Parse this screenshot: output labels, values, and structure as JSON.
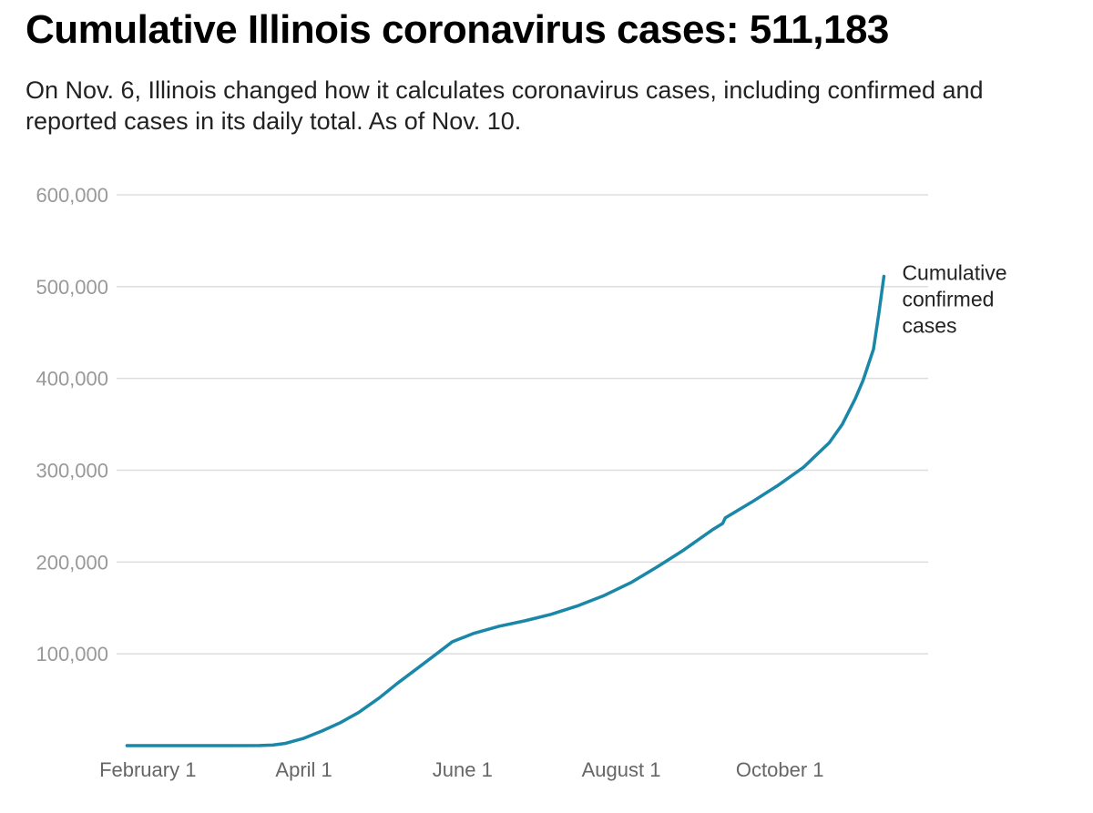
{
  "chart_data": {
    "type": "line",
    "title": "Cumulative Illinois coronavirus cases: 511,183",
    "subtitle": "On Nov. 6, Illinois changed how it calculates coronavirus cases, including confirmed and reported cases in its daily total. As of Nov. 10.",
    "xlabel": "",
    "ylabel": "",
    "ylim": [
      0,
      600000
    ],
    "xlim": [
      "2020-01-20",
      "2020-11-27"
    ],
    "grid": true,
    "x_ticks": [
      {
        "date": "2020-02-01",
        "label": "February 1"
      },
      {
        "date": "2020-04-01",
        "label": "April 1"
      },
      {
        "date": "2020-06-01",
        "label": "June 1"
      },
      {
        "date": "2020-08-01",
        "label": "August 1"
      },
      {
        "date": "2020-10-01",
        "label": "October 1"
      }
    ],
    "y_ticks": [
      {
        "value": 100000,
        "label": "100,000"
      },
      {
        "value": 200000,
        "label": "200,000"
      },
      {
        "value": 300000,
        "label": "300,000"
      },
      {
        "value": 400000,
        "label": "400,000"
      },
      {
        "value": 500000,
        "label": "500,000"
      },
      {
        "value": 600000,
        "label": "600,000"
      }
    ],
    "series": [
      {
        "name": "Cumulative confirmed cases",
        "label_lines": [
          "Cumulative",
          "confirmed",
          "cases"
        ],
        "color": "#1a87a8",
        "points": [
          [
            "2020-01-24",
            0
          ],
          [
            "2020-02-15",
            0
          ],
          [
            "2020-03-01",
            0
          ],
          [
            "2020-03-15",
            100
          ],
          [
            "2020-03-20",
            600
          ],
          [
            "2020-03-25",
            2500
          ],
          [
            "2020-04-01",
            8000
          ],
          [
            "2020-04-08",
            16000
          ],
          [
            "2020-04-15",
            25000
          ],
          [
            "2020-04-22",
            36000
          ],
          [
            "2020-04-30",
            52000
          ],
          [
            "2020-05-07",
            68000
          ],
          [
            "2020-05-15",
            85000
          ],
          [
            "2020-05-22",
            100000
          ],
          [
            "2020-05-28",
            113000
          ],
          [
            "2020-06-05",
            122000
          ],
          [
            "2020-06-15",
            130000
          ],
          [
            "2020-06-25",
            136000
          ],
          [
            "2020-07-05",
            143000
          ],
          [
            "2020-07-15",
            152000
          ],
          [
            "2020-07-25",
            163000
          ],
          [
            "2020-08-05",
            178000
          ],
          [
            "2020-08-15",
            195000
          ],
          [
            "2020-08-25",
            213000
          ],
          [
            "2020-09-05",
            235000
          ],
          [
            "2020-09-09",
            242000
          ],
          [
            "2020-09-10",
            248000
          ],
          [
            "2020-09-20",
            265000
          ],
          [
            "2020-09-30",
            283000
          ],
          [
            "2020-10-10",
            303000
          ],
          [
            "2020-10-20",
            330000
          ],
          [
            "2020-10-25",
            350000
          ],
          [
            "2020-10-30",
            378000
          ],
          [
            "2020-11-02",
            398000
          ],
          [
            "2020-11-06",
            432000
          ],
          [
            "2020-11-08",
            470000
          ],
          [
            "2020-11-10",
            511183
          ]
        ]
      }
    ]
  }
}
